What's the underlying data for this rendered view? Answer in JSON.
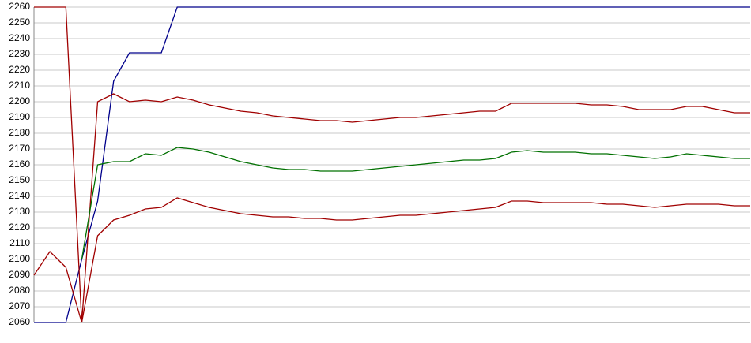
{
  "chart_data": {
    "type": "line",
    "categories": [
      null,
      null,
      null,
      null,
      null,
      null,
      null,
      null,
      null,
      null,
      null,
      null,
      null,
      null,
      null,
      null,
      null,
      null,
      null,
      null,
      null,
      null,
      null,
      null,
      null,
      null,
      null,
      null,
      null,
      null,
      null,
      null,
      null,
      null,
      null,
      null,
      null,
      null,
      null,
      null,
      null,
      null,
      null,
      null,
      null,
      null
    ],
    "series": [
      {
        "color": "#00008b",
        "values": [
          2060,
          2060,
          2060,
          2100,
          2137,
          2213,
          2231,
          2231,
          2231,
          2260,
          2260,
          2260,
          2260,
          2260,
          2260,
          2260,
          2260,
          2260,
          2260,
          2260,
          2260,
          2260,
          2260,
          2260,
          2260,
          2260,
          2260,
          2260,
          2260,
          2260,
          2260,
          2260,
          2260,
          2260,
          2260,
          2260,
          2260,
          2260,
          2260,
          2260,
          2260,
          2260,
          2260,
          2260,
          2260,
          2260
        ]
      },
      {
        "color": "#a00000",
        "values": [
          2260,
          2260,
          2260,
          2060,
          2200,
          2205,
          2200,
          2201,
          2200,
          2203,
          2201,
          2198,
          2196,
          2194,
          2193,
          2191,
          2190,
          2189,
          2188,
          2188,
          2187,
          2188,
          2189,
          2190,
          2190,
          2191,
          2192,
          2193,
          2194,
          2194,
          2199,
          2199,
          2199,
          2199,
          2199,
          2198,
          2198,
          2197,
          2195,
          2195,
          2195,
          2197,
          2197,
          2195,
          2193,
          2193
        ]
      },
      {
        "color": "#007000",
        "values": [
          null,
          null,
          null,
          2100,
          2160,
          2162,
          2162,
          2167,
          2166,
          2171,
          2170,
          2168,
          2165,
          2162,
          2160,
          2158,
          2157,
          2157,
          2156,
          2156,
          2156,
          2157,
          2158,
          2159,
          2160,
          2161,
          2162,
          2163,
          2163,
          2164,
          2168,
          2169,
          2168,
          2168,
          2168,
          2167,
          2167,
          2166,
          2165,
          2164,
          2165,
          2167,
          2166,
          2165,
          2164,
          2164
        ]
      },
      {
        "color": "#a00000",
        "values": [
          2090,
          2105,
          2095,
          2060,
          2115,
          2125,
          2128,
          2132,
          2133,
          2139,
          2136,
          2133,
          2131,
          2129,
          2128,
          2127,
          2127,
          2126,
          2126,
          2125,
          2125,
          2126,
          2127,
          2128,
          2128,
          2129,
          2130,
          2131,
          2132,
          2133,
          2137,
          2137,
          2136,
          2136,
          2136,
          2136,
          2135,
          2135,
          2134,
          2133,
          2134,
          2135,
          2135,
          2135,
          2134,
          2134
        ]
      }
    ],
    "ylim": [
      2060,
      2260
    ],
    "yticks": [
      2060,
      2070,
      2080,
      2090,
      2100,
      2110,
      2120,
      2130,
      2140,
      2150,
      2160,
      2170,
      2180,
      2190,
      2200,
      2210,
      2220,
      2230,
      2240,
      2250,
      2260
    ],
    "grid": true
  }
}
